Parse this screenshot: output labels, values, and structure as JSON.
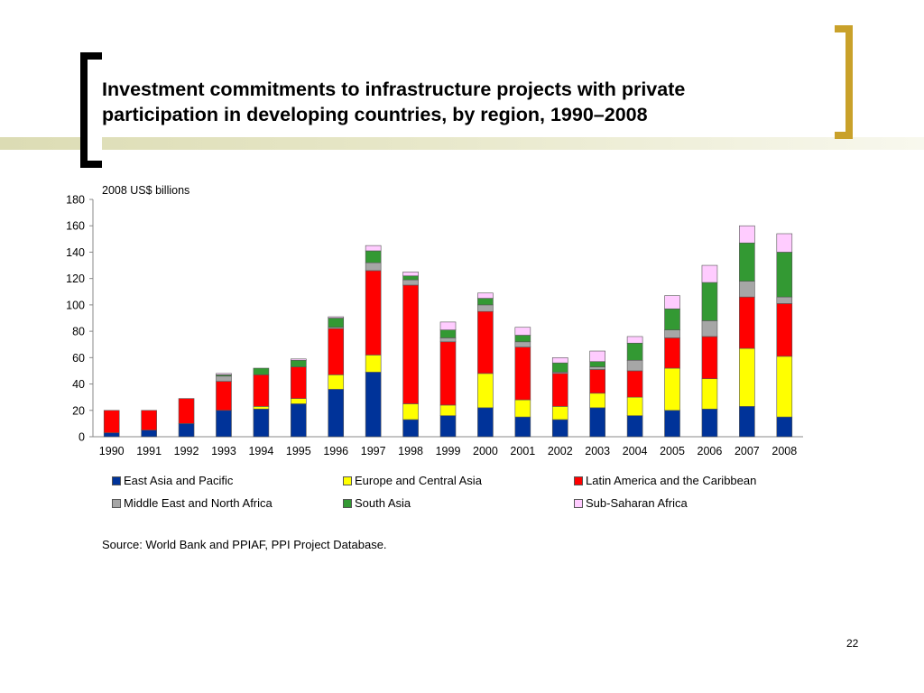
{
  "slide": {
    "title_line1": "Investment commitments to infrastructure projects with private",
    "title_line2": "participation in developing countries, by region, 1990–2008",
    "source": "Source: World Bank and PPIAF, PPI Project Database.",
    "page_number": "22",
    "accent_color": "#c9a12a"
  },
  "chart_data": {
    "type": "bar",
    "stacked": true,
    "title": "",
    "xlabel": "",
    "ylabel": "2008 US$ billions",
    "ylim": [
      0,
      180
    ],
    "yticks": [
      0,
      20,
      40,
      60,
      80,
      100,
      120,
      140,
      160,
      180
    ],
    "grid": false,
    "legend_position": "bottom",
    "categories": [
      "1990",
      "1991",
      "1992",
      "1993",
      "1994",
      "1995",
      "1996",
      "1997",
      "1998",
      "1999",
      "2000",
      "2001",
      "2002",
      "2003",
      "2004",
      "2005",
      "2006",
      "2007",
      "2008"
    ],
    "series": [
      {
        "name": "East Asia and Pacific",
        "color": "#003399",
        "values": [
          3,
          5,
          10,
          20,
          21,
          25,
          36,
          49,
          13,
          16,
          22,
          15,
          13,
          22,
          16,
          20,
          21,
          23,
          15
        ]
      },
      {
        "name": "Latin America and the Caribbean",
        "color": "#ff0000",
        "values": [
          17,
          15,
          19,
          22,
          24,
          24,
          35,
          64,
          90,
          48,
          47,
          40,
          25,
          18,
          20,
          23,
          32,
          39,
          40
        ]
      },
      {
        "name": "South Asia",
        "color": "#339933",
        "values": [
          0,
          0,
          0,
          1,
          5,
          5,
          7,
          9,
          3,
          6,
          5,
          5,
          7,
          4,
          13,
          16,
          29,
          29,
          34
        ]
      },
      {
        "name": "Europe and Central Asia",
        "color": "#ffff00",
        "values": [
          0,
          0,
          0,
          0,
          2,
          4,
          11,
          13,
          12,
          8,
          26,
          13,
          10,
          11,
          14,
          32,
          23,
          44,
          46
        ]
      },
      {
        "name": "Middle East and North Africa",
        "color": "#a6a6a6",
        "values": [
          0,
          0,
          0,
          4,
          0,
          0,
          1,
          6,
          4,
          3,
          5,
          4,
          1,
          2,
          8,
          6,
          12,
          12,
          5
        ]
      },
      {
        "name": "Sub-Saharan Africa",
        "color": "#ffccff",
        "values": [
          0,
          0,
          0,
          1,
          0,
          1,
          1,
          4,
          3,
          6,
          4,
          6,
          4,
          8,
          5,
          10,
          13,
          13,
          14
        ]
      }
    ],
    "stack_order": [
      "East Asia and Pacific",
      "Europe and Central Asia",
      "Latin America and the Caribbean",
      "Middle East and North Africa",
      "South Asia",
      "Sub-Saharan Africa"
    ],
    "legend_order": [
      "East Asia and Pacific",
      "Europe and Central Asia",
      "Latin America and the Caribbean",
      "Middle East and North Africa",
      "South Asia",
      "Sub-Saharan Africa"
    ]
  }
}
